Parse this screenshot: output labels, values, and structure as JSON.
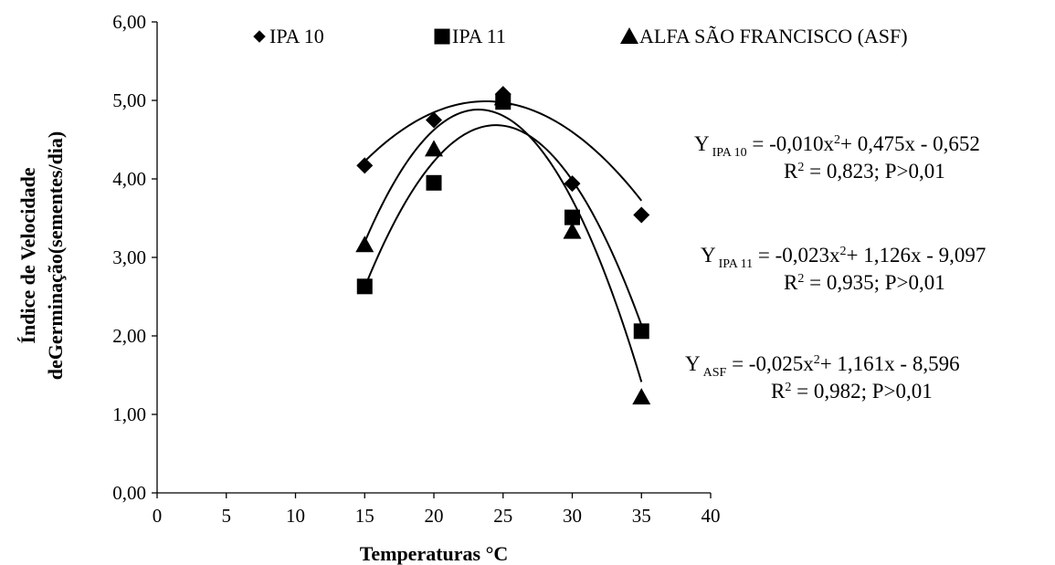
{
  "chart_data": {
    "type": "scatter",
    "xlabel": "Temperaturas °C",
    "ylabel_lines": [
      "Índice de Velocidade",
      "deGerminação(sementes/dia)"
    ],
    "xlim": [
      0,
      40
    ],
    "ylim": [
      0,
      6
    ],
    "x_ticks": [
      0,
      5,
      10,
      15,
      20,
      25,
      30,
      35,
      40
    ],
    "y_ticks": [
      0,
      1,
      2,
      3,
      4,
      5,
      6
    ],
    "y_tick_labels": [
      "0,00",
      "1,00",
      "2,00",
      "3,00",
      "4,00",
      "5,00",
      "6,00"
    ],
    "grid": false,
    "legend_position": "top",
    "series": [
      {
        "name": "IPA 10",
        "marker": "diamond",
        "x": [
          15,
          20,
          25,
          30,
          35
        ],
        "y": [
          4.17,
          4.75,
          5.08,
          3.94,
          3.54
        ],
        "fit": {
          "a": -0.01,
          "b": 0.475,
          "c": -0.652
        }
      },
      {
        "name": "IPA 11",
        "marker": "square",
        "x": [
          15,
          20,
          25,
          30,
          35
        ],
        "y": [
          2.63,
          3.95,
          4.98,
          3.51,
          2.06
        ],
        "fit": {
          "a": -0.023,
          "b": 1.126,
          "c": -9.097
        }
      },
      {
        "name": "ALFA SÃO FRANCISCO (ASF)",
        "marker": "triangle",
        "x": [
          15,
          20,
          25,
          30,
          35
        ],
        "y": [
          3.16,
          4.38,
          5.03,
          3.33,
          1.22
        ],
        "fit": {
          "a": -0.025,
          "b": 1.161,
          "c": -8.596
        }
      }
    ],
    "equations": [
      {
        "y": "Y",
        "sub": "IPA 10",
        "expr_a": " = -0,010x",
        "sup": "2",
        "expr_b": "+ 0,475x - 0,652",
        "r2_prefix": "R",
        "r2_rest": " = 0,823; P>0,01"
      },
      {
        "y": "Y",
        "sub": "IPA 11",
        "expr_a": " = -0,023x",
        "sup": "2",
        "expr_b": "+ 1,126x - 9,097",
        "r2_prefix": "R",
        "r2_rest": " = 0,935; P>0,01"
      },
      {
        "y": "Y",
        "sub": "ASF",
        "expr_a": "  = -0,025x",
        "sup": "2",
        "expr_b": "+ 1,161x - 8,596",
        "r2_prefix": "R",
        "r2_rest": " = 0,982; P>0,01"
      }
    ],
    "colors": {
      "marker": "#000000",
      "line": "#000000"
    }
  }
}
